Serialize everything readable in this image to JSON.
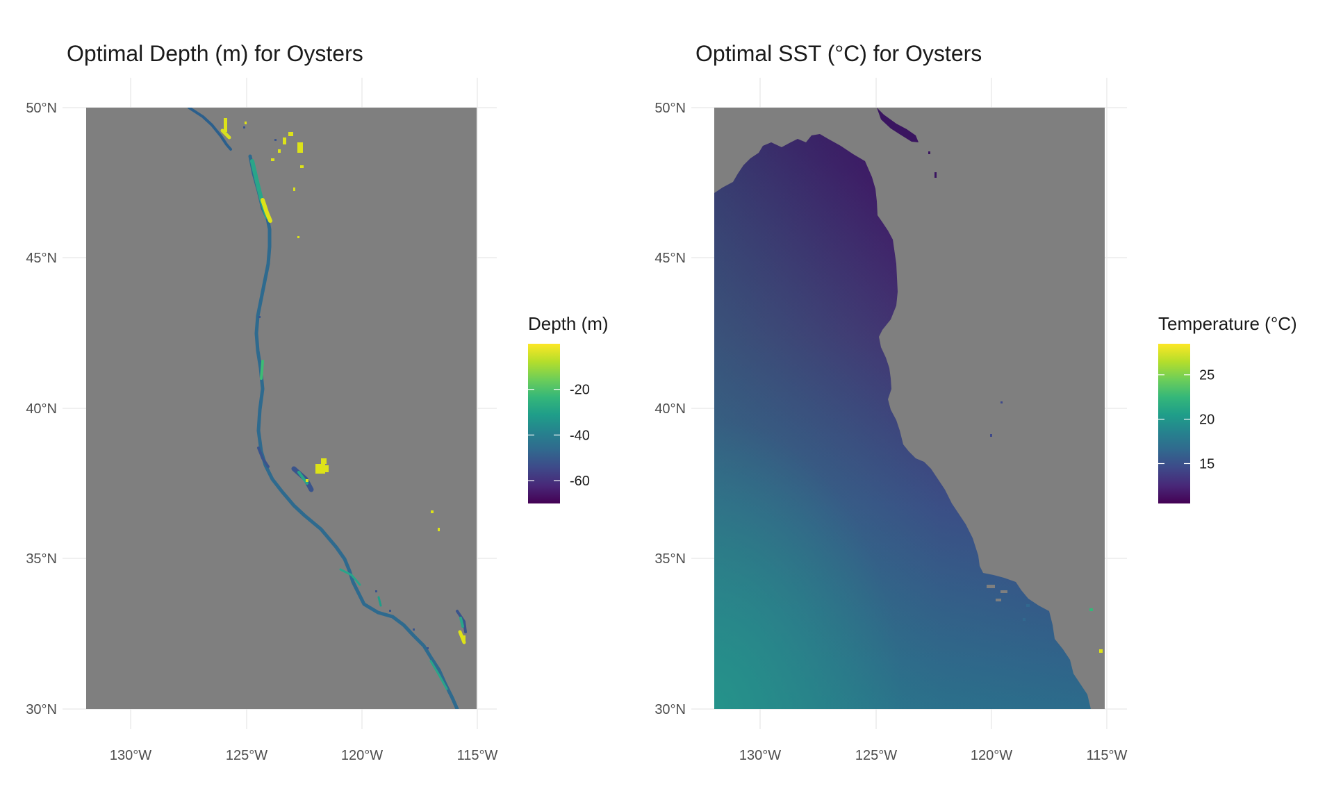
{
  "colors": {
    "background": "#ffffff",
    "land": "#7f7f7f",
    "grid": "#ebebeb",
    "title": "#1a1a1a",
    "axis_text": "#4d4d4d",
    "viridis": [
      "#440154",
      "#482878",
      "#3e4989",
      "#31688e",
      "#26828e",
      "#1f9e89",
      "#35b779",
      "#6ece58",
      "#b5de2b",
      "#fde725"
    ]
  },
  "chart_data": [
    {
      "type": "heatmap",
      "title": "Optimal Depth (m) for Oysters",
      "x_ticks": [
        "130°W",
        "125°W",
        "120°W",
        "115°W"
      ],
      "y_ticks": [
        "50°N",
        "45°N",
        "40°N",
        "35°N",
        "30°N"
      ],
      "xlim": [
        -132,
        -115
      ],
      "ylim": [
        30,
        50
      ],
      "grid": true,
      "legend": {
        "title": "Depth (m)",
        "position": "right",
        "range": [
          -70,
          0
        ],
        "ticks": [
          "-20",
          "-40",
          "-60"
        ],
        "tick_values": [
          -20,
          -40,
          -60
        ]
      },
      "fill": "land cells grey; only coastal cells with depths between about -70 and 0 m coloured"
    },
    {
      "type": "heatmap",
      "title": "Optimal SST (°C) for Oysters",
      "x_ticks": [
        "130°W",
        "125°W",
        "120°W",
        "115°W"
      ],
      "y_ticks": [
        "50°N",
        "45°N",
        "40°N",
        "35°N",
        "30°N"
      ],
      "xlim": [
        -132,
        -115
      ],
      "ylim": [
        30,
        50
      ],
      "grid": true,
      "legend": {
        "title": "Temperature (°C)",
        "position": "right",
        "range": [
          10.5,
          28.5
        ],
        "ticks": [
          "25",
          "20",
          "15"
        ],
        "tick_values": [
          25,
          20,
          15
        ]
      },
      "fill": "ocean cells coloured by sea surface temperature, about 10 °C in the north rising to about 20 °C in the south-west; land grey"
    }
  ]
}
